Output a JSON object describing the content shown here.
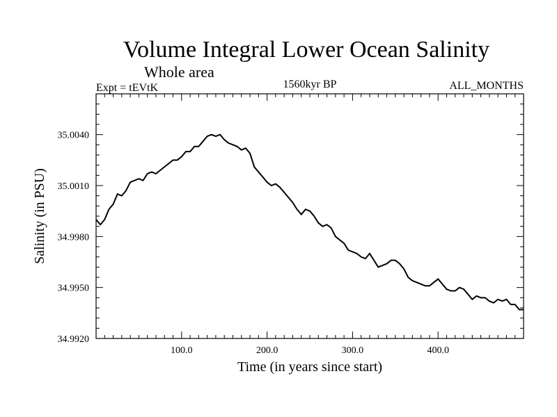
{
  "chart_data": {
    "type": "line",
    "title": "Volume Integral Lower Ocean Salinity",
    "subtitle": "Whole area",
    "left_caption": "Expt = tEVtK",
    "center_caption": "1560kyr BP",
    "right_caption": "ALL_MONTHS",
    "xlabel": "Time (in years since start)",
    "ylabel": "Salinity (in PSU)",
    "xlim": [
      0,
      500
    ],
    "ylim": [
      34.992,
      35.0064
    ],
    "x_ticks": [
      100,
      200,
      300,
      400
    ],
    "x_tick_labels": [
      "100.0",
      "200.0",
      "300.0",
      "400.0"
    ],
    "y_ticks": [
      34.992,
      34.995,
      34.998,
      35.001,
      35.004
    ],
    "y_tick_labels": [
      "34.9920",
      "34.9950",
      "34.9980",
      "35.0010",
      "35.0040"
    ],
    "series": [
      {
        "name": "Salinity",
        "x": [
          0,
          5,
          10,
          15,
          20,
          25,
          30,
          35,
          40,
          45,
          50,
          55,
          60,
          65,
          70,
          75,
          80,
          85,
          90,
          95,
          100,
          105,
          110,
          115,
          120,
          125,
          130,
          135,
          140,
          145,
          150,
          155,
          160,
          165,
          170,
          175,
          180,
          185,
          190,
          195,
          200,
          205,
          210,
          215,
          220,
          225,
          230,
          235,
          240,
          245,
          250,
          255,
          260,
          265,
          270,
          275,
          280,
          285,
          290,
          295,
          300,
          305,
          310,
          315,
          320,
          325,
          330,
          335,
          340,
          345,
          350,
          355,
          360,
          365,
          370,
          375,
          380,
          385,
          390,
          395,
          400,
          405,
          410,
          415,
          420,
          425,
          430,
          435,
          440,
          445,
          450,
          455,
          460,
          465,
          470,
          475,
          480,
          485,
          490,
          495,
          500
        ],
        "values": [
          34.999,
          34.9987,
          34.999,
          34.9996,
          34.9999,
          35.0005,
          35.0004,
          35.0007,
          35.0012,
          35.0013,
          35.0014,
          35.0013,
          35.0017,
          35.0018,
          35.0017,
          35.0019,
          35.0021,
          35.0023,
          35.0025,
          35.0025,
          35.0027,
          35.003,
          35.003,
          35.0033,
          35.0033,
          35.0036,
          35.0039,
          35.004,
          35.0039,
          35.004,
          35.0037,
          35.0035,
          35.0034,
          35.0033,
          35.0031,
          35.0032,
          35.0029,
          35.0021,
          35.0018,
          35.0015,
          35.0012,
          35.001,
          35.0011,
          35.0009,
          35.0006,
          35.0003,
          35.0,
          34.9996,
          34.9993,
          34.9996,
          34.9995,
          34.9992,
          34.9988,
          34.9986,
          34.9987,
          34.9985,
          34.998,
          34.9978,
          34.9976,
          34.9972,
          34.9971,
          34.997,
          34.9968,
          34.9967,
          34.997,
          34.9966,
          34.9962,
          34.9963,
          34.9964,
          34.9966,
          34.9966,
          34.9964,
          34.9961,
          34.9956,
          34.9954,
          34.9953,
          34.9952,
          34.9951,
          34.9951,
          34.9953,
          34.9955,
          34.9952,
          34.9949,
          34.9948,
          34.9948,
          34.995,
          34.9949,
          34.9946,
          34.9943,
          34.9945,
          34.9944,
          34.9944,
          34.9942,
          34.9941,
          34.9943,
          34.9942,
          34.9943,
          34.994,
          34.994,
          34.9937,
          34.9937
        ]
      }
    ]
  }
}
